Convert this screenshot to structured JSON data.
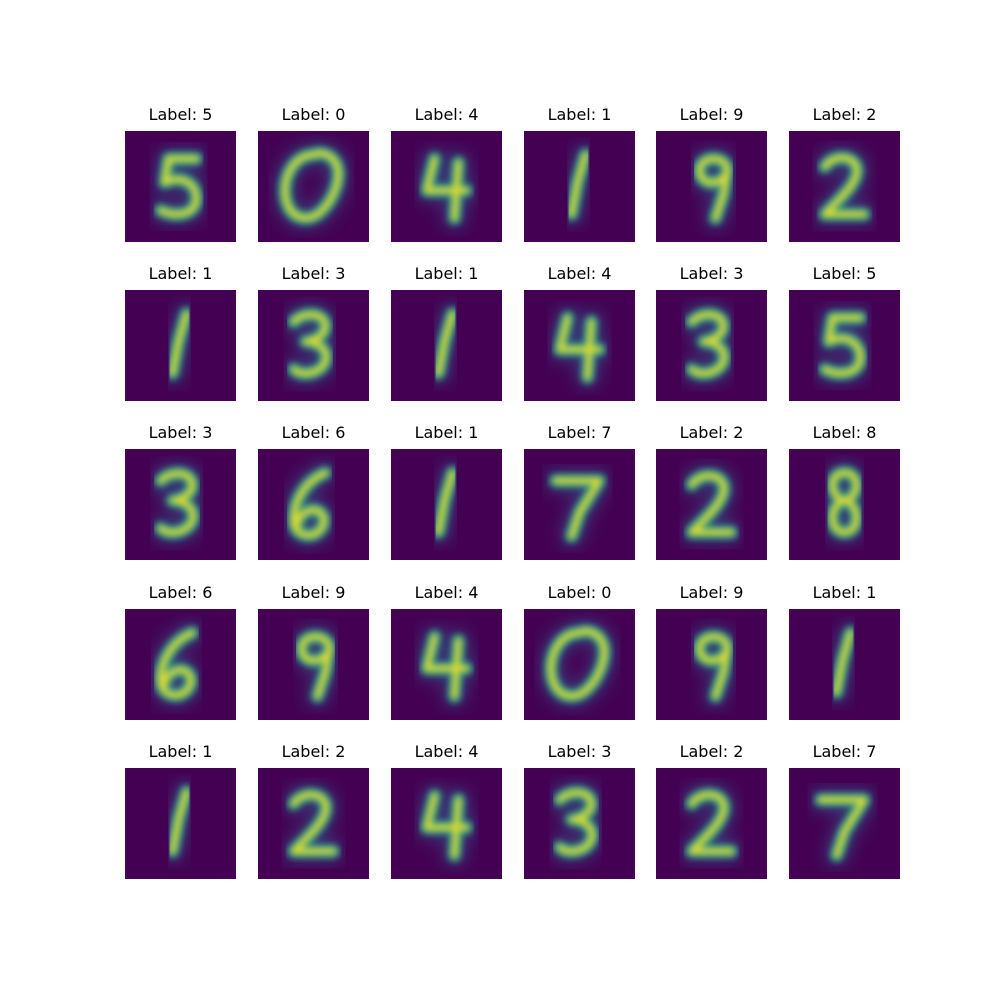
{
  "figure": {
    "colormap": "viridis",
    "background_color": "#440154",
    "stroke_color_high": "#fde725",
    "stroke_color_mid": "#21918c",
    "rows": 5,
    "cols": 6,
    "panels": [
      {
        "title": "Label: 5",
        "digit": "5"
      },
      {
        "title": "Label: 0",
        "digit": "0"
      },
      {
        "title": "Label: 4",
        "digit": "4"
      },
      {
        "title": "Label: 1",
        "digit": "1"
      },
      {
        "title": "Label: 9",
        "digit": "9"
      },
      {
        "title": "Label: 2",
        "digit": "2"
      },
      {
        "title": "Label: 1",
        "digit": "1"
      },
      {
        "title": "Label: 3",
        "digit": "3"
      },
      {
        "title": "Label: 1",
        "digit": "1"
      },
      {
        "title": "Label: 4",
        "digit": "4"
      },
      {
        "title": "Label: 3",
        "digit": "3"
      },
      {
        "title": "Label: 5",
        "digit": "5"
      },
      {
        "title": "Label: 3",
        "digit": "3"
      },
      {
        "title": "Label: 6",
        "digit": "6"
      },
      {
        "title": "Label: 1",
        "digit": "1"
      },
      {
        "title": "Label: 7",
        "digit": "7"
      },
      {
        "title": "Label: 2",
        "digit": "2"
      },
      {
        "title": "Label: 8",
        "digit": "8"
      },
      {
        "title": "Label: 6",
        "digit": "6"
      },
      {
        "title": "Label: 9",
        "digit": "9"
      },
      {
        "title": "Label: 4",
        "digit": "4"
      },
      {
        "title": "Label: 0",
        "digit": "0"
      },
      {
        "title": "Label: 9",
        "digit": "9"
      },
      {
        "title": "Label: 1",
        "digit": "1"
      },
      {
        "title": "Label: 1",
        "digit": "1"
      },
      {
        "title": "Label: 2",
        "digit": "2"
      },
      {
        "title": "Label: 4",
        "digit": "4"
      },
      {
        "title": "Label: 3",
        "digit": "3"
      },
      {
        "title": "Label: 2",
        "digit": "2"
      },
      {
        "title": "Label: 7",
        "digit": "7"
      }
    ]
  }
}
